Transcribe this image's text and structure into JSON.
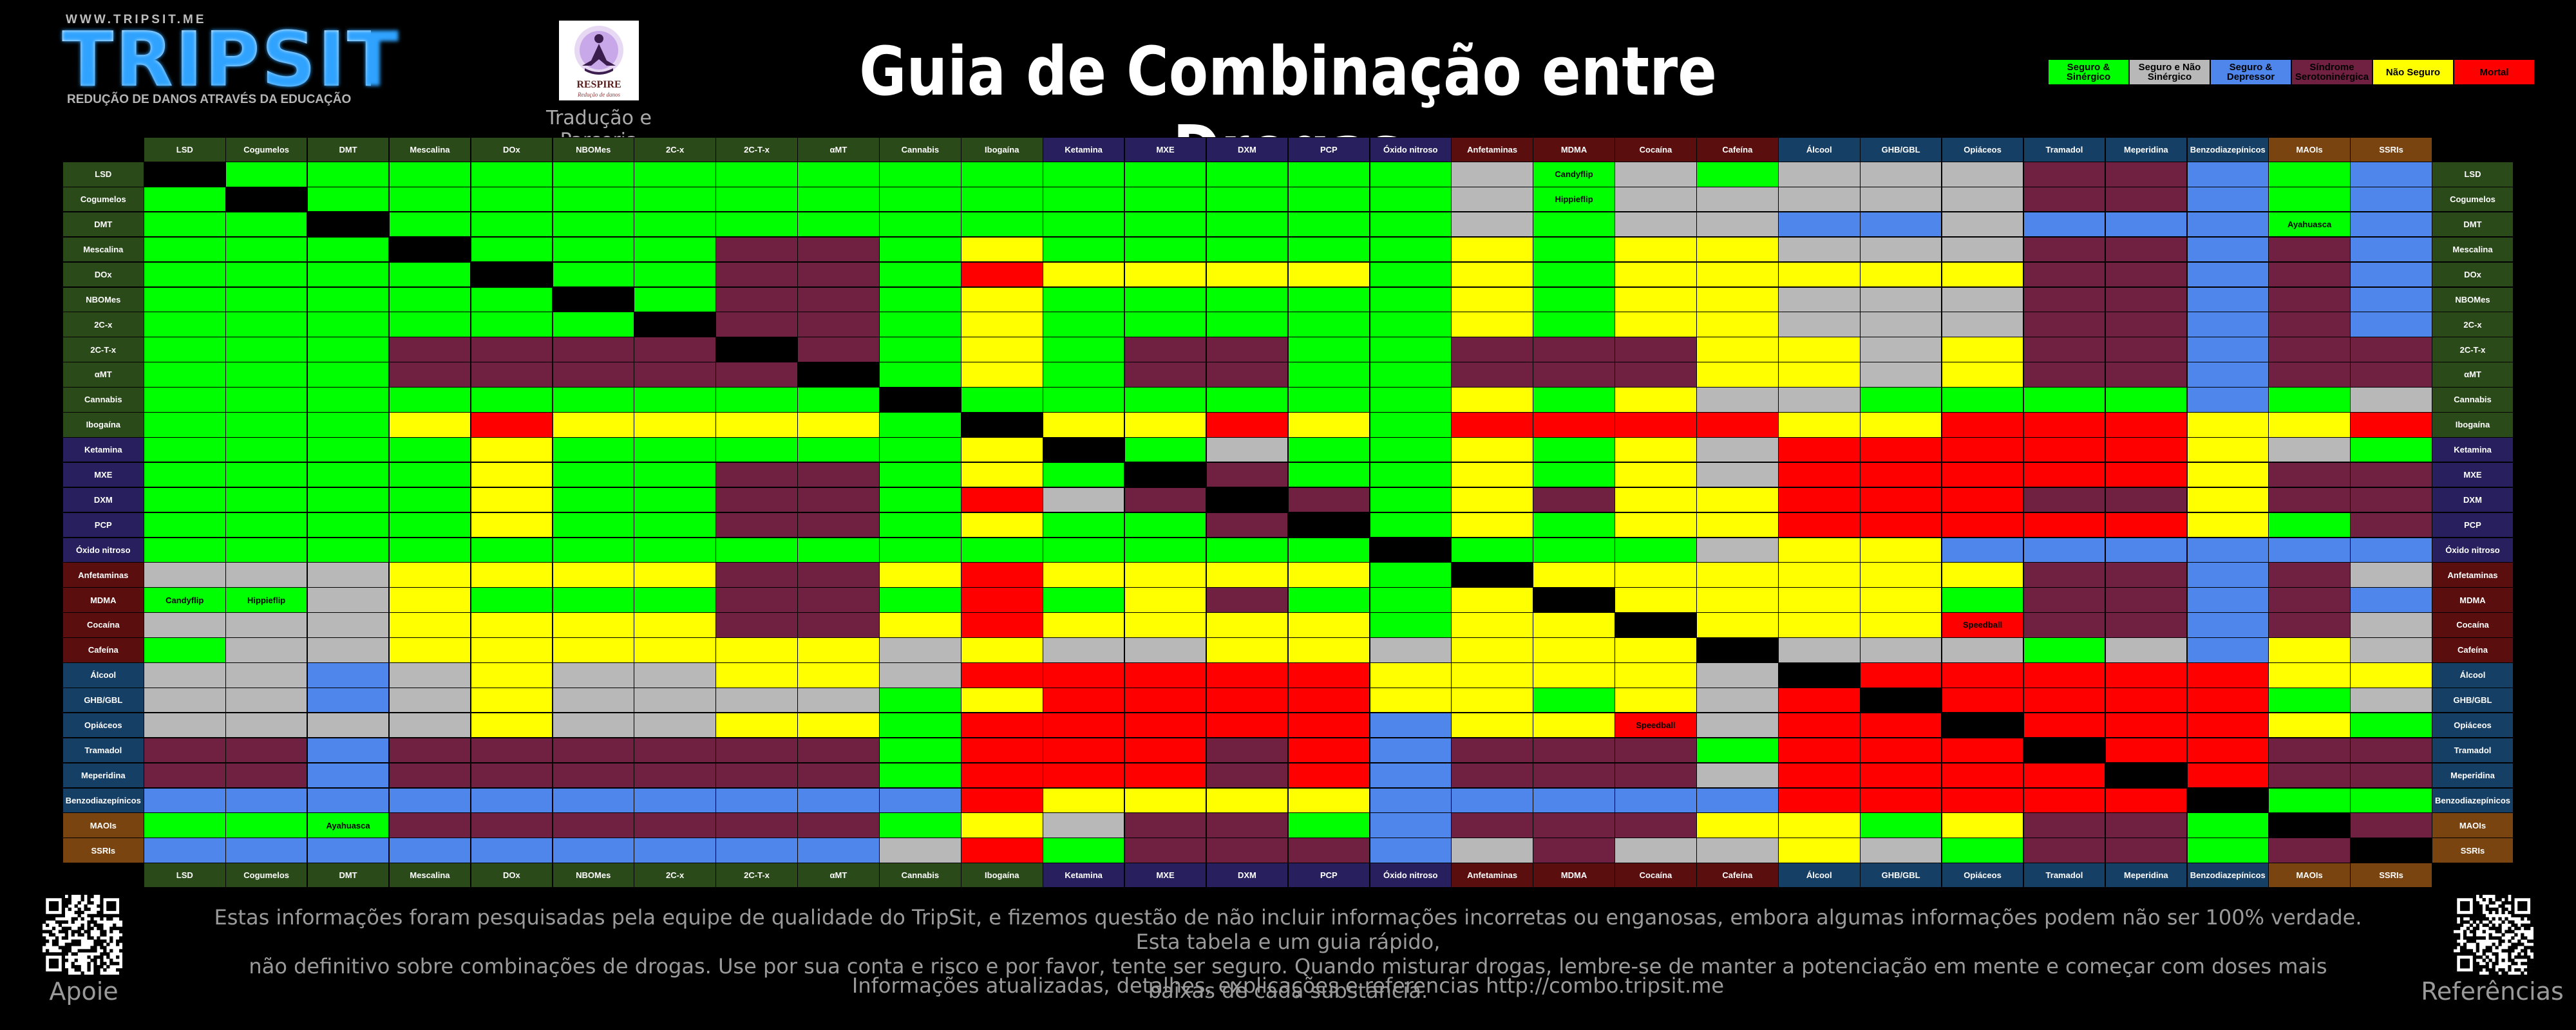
{
  "header": {
    "url": "WWW.TRIPSIT.ME",
    "logo_text": "TRIPSIT",
    "slogan": "REDUÇÃO DE DANOS ATRAVÉS DA EDUCAÇÃO",
    "partner_name": "RESPIRE",
    "partner_tagline": "Redução de danos",
    "partner_caption": "Tradução e Parceria",
    "title": "Guia de Combinação entre Drogas"
  },
  "legend": [
    {
      "code": "SS",
      "label": "Seguro & Sinérgico",
      "color": "#00ff00",
      "text_color": "#000000"
    },
    {
      "code": "SN",
      "label": "Seguro e Não Sinérgico",
      "color": "#b8b8b8",
      "text_color": "#000000"
    },
    {
      "code": "SD",
      "label": "Seguro & Depressor",
      "color": "#4f86ec",
      "text_color": "#000000"
    },
    {
      "code": "SE",
      "label": "Síndrome Serotoninérgica",
      "color": "#702040",
      "text_color": "#000000"
    },
    {
      "code": "NS",
      "label": "Não Seguro",
      "color": "#ffff00",
      "text_color": "#000000"
    },
    {
      "code": "MO",
      "label": "Mortal",
      "color": "#ff0000",
      "text_color": "#000000"
    }
  ],
  "colors": {
    "G": "#00ff00",
    "S": "#b8b8b8",
    "B": "#4f86ec",
    "P": "#702040",
    "Y": "#ffff00",
    "R": "#ff0000",
    "K": "#000000"
  },
  "drugs": [
    {
      "name": "LSD",
      "group": "psy"
    },
    {
      "name": "Cogumelos",
      "group": "psy"
    },
    {
      "name": "DMT",
      "group": "psy"
    },
    {
      "name": "Mescalina",
      "group": "psy"
    },
    {
      "name": "DOx",
      "group": "psy"
    },
    {
      "name": "NBOMes",
      "group": "psy"
    },
    {
      "name": "2C-x",
      "group": "psy"
    },
    {
      "name": "2C-T-x",
      "group": "psy"
    },
    {
      "name": "αMT",
      "group": "psy"
    },
    {
      "name": "Cannabis",
      "group": "psy"
    },
    {
      "name": "Ibogaína",
      "group": "psy"
    },
    {
      "name": "Ketamina",
      "group": "dis"
    },
    {
      "name": "MXE",
      "group": "dis"
    },
    {
      "name": "DXM",
      "group": "dis"
    },
    {
      "name": "PCP",
      "group": "dis"
    },
    {
      "name": "Óxido nitroso",
      "group": "dis"
    },
    {
      "name": "Anfetaminas",
      "group": "sti"
    },
    {
      "name": "MDMA",
      "group": "sti"
    },
    {
      "name": "Cocaína",
      "group": "sti"
    },
    {
      "name": "Cafeína",
      "group": "sti"
    },
    {
      "name": "Álcool",
      "group": "dep"
    },
    {
      "name": "GHB/GBL",
      "group": "dep"
    },
    {
      "name": "Opiáceos",
      "group": "dep"
    },
    {
      "name": "Tramadol",
      "group": "dep"
    },
    {
      "name": "Meperidina",
      "group": "dep"
    },
    {
      "name": "Benzodiazepínicos",
      "group": "dep"
    },
    {
      "name": "MAOIs",
      "group": "ser"
    },
    {
      "name": "SSRIs",
      "group": "ser"
    }
  ],
  "group_colors": {
    "psy": "#2b4a1a",
    "dis": "#28205e",
    "sti": "#5a0e0e",
    "dep": "#163f66",
    "ser": "#7a4410"
  },
  "matrix": [
    "KGGGGGGGGGGGGGGGSGSGSSSPPBGB",
    "GKGGGGGGGGGGGGGGSGSSSSSPPBGB",
    "GGKGGGGGGGGGGGGGSGSSBBSBBBGB",
    "GGGKGGGPPGYGGGGGYGYYSSSPPBPB",
    "GGGGKGGPPGRYYYYGYGYYYYYPPBPB",
    "GGGGGKGPPGYGGGGGYGYYSSSPPBPB",
    "GGGGGGKPPGYGGGGGYGYYSSSPPBPB",
    "GGGPPPPKPGYGPPGGPPPYYSYPPBPP",
    "GGGPPPPPKGYGPPGGPPPYYSYPPBPP",
    "GGGGGGGGGKGGGGGGYGYSSGGGGBGS",
    "GGGYRYYYYGKYYRYGRRRRYYRRRYYR",
    "GGGGYGGGGGYKGSGGYGYSRRRRRYSG",
    "GGGGYGGPPGYGKPGGYGYSRRRRRYPP",
    "GGGGYGGPPGRSPKPGYPYYRRRPPYPP",
    "GGGGYGGPPGYGGPKGYGYYRRRRRYGP",
    "GGGGGGGGGGGGGGGKGGGSYYBBBBBB",
    "SSSYYYYPPYRYYYYGKYYYYYYPPBPS",
    "GGSYGGGPPGRGYPGGYKYYYYGPPBPB",
    "SSSYYYYPPYRYYYYGYYKYYYRPPBPS",
    "GSSYYYYYYSYSSYYSYYYKSSSGSBYS",
    "SSBSYSSYYSRRRRRYYYYSKRRRRRYY",
    "SSBSYSSSSGYRRRRYYGYSRKRRRRGS",
    "SSSSYSSYYGRRRRRBYYRSRRKRRRYG",
    "PPBPPPPPPGRRRPRBPPPGRRRKRRPP",
    "PPBPPPPPPGRRRPRBPPPSRRRRKRPP",
    "BBBBBBBBBBRYYYYBBBBBRRRRRKGG",
    "GGGPPPPPPGYSPPGBPPPYYGYPPGKP",
    "BBBBBBBBBSRGPPPBSPSSYSGPPGPK"
  ],
  "cell_notes": [
    {
      "row": 0,
      "col": 17,
      "text": "Candyflip"
    },
    {
      "row": 1,
      "col": 17,
      "text": "Hippieflip"
    },
    {
      "row": 17,
      "col": 0,
      "text": "Candyflip"
    },
    {
      "row": 17,
      "col": 1,
      "text": "Hippieflip"
    },
    {
      "row": 2,
      "col": 26,
      "text": "Ayahuasca"
    },
    {
      "row": 26,
      "col": 2,
      "text": "Ayahuasca"
    },
    {
      "row": 18,
      "col": 22,
      "text": "Speedball"
    },
    {
      "row": 22,
      "col": 18,
      "text": "Speedball"
    }
  ],
  "footer": {
    "disclaimer_line1": "Estas informações foram pesquisadas pela equipe de qualidade do TripSit, e fizemos questão de não incluir informações incorretas ou enganosas, embora algumas informações podem não ser 100% verdade. Esta tabela e um guia rápido,",
    "disclaimer_line2": "não definitivo sobre combinações de drogas. Use por sua conta e risco e por favor, tente ser seguro. Quando misturar drogas, lembre-se de manter a potenciação em mente e começar com doses mais baixas de cada substancia.",
    "info_line": "Informações atualizadas, detalhes, explicações e referencias http://combo.tripsit.me",
    "left_caption": "Apoie",
    "right_caption": "Referências"
  }
}
